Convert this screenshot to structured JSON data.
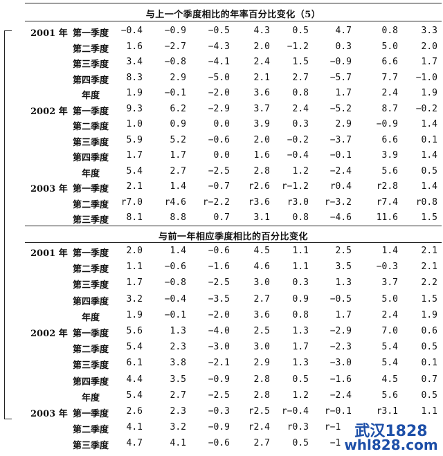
{
  "sections": [
    {
      "title": "与上一个季度相比的年率百分比变化（5）",
      "rows": [
        {
          "year": "2001 年",
          "quarter": "第一季度",
          "values": [
            "−0.4",
            "−0.9",
            "−0.5",
            "4.3",
            "0.5",
            "4.7",
            "0.8",
            "3.3"
          ]
        },
        {
          "year": "",
          "quarter": "第二季度",
          "values": [
            "1.6",
            "−2.7",
            "−4.3",
            "2.0",
            "−1.2",
            "0.3",
            "5.0",
            "2.0"
          ]
        },
        {
          "year": "",
          "quarter": "第三季度",
          "values": [
            "3.4",
            "−0.8",
            "−4.1",
            "2.4",
            "1.5",
            "−0.9",
            "6.6",
            "1.7"
          ]
        },
        {
          "year": "",
          "quarter": "第四季度",
          "values": [
            "8.3",
            "2.9",
            "−5.0",
            "2.1",
            "2.7",
            "−5.7",
            "7.7",
            "−1.0"
          ]
        },
        {
          "year": "",
          "quarter": "年度",
          "values": [
            "1.9",
            "−0.1",
            "−2.0",
            "3.6",
            "0.8",
            "1.7",
            "2.4",
            "1.9"
          ]
        },
        {
          "year": "2002 年",
          "quarter": "第一季度",
          "values": [
            "9.3",
            "6.2",
            "−2.9",
            "3.7",
            "2.4",
            "−5.2",
            "8.7",
            "−0.2"
          ]
        },
        {
          "year": "",
          "quarter": "第二季度",
          "values": [
            "1.0",
            "0.9",
            "0.0",
            "3.9",
            "0.3",
            "2.9",
            "−0.9",
            "1.4"
          ]
        },
        {
          "year": "",
          "quarter": "第三季度",
          "values": [
            "5.9",
            "5.2",
            "−0.6",
            "2.0",
            "−0.2",
            "−3.7",
            "6.6",
            "0.1"
          ]
        },
        {
          "year": "",
          "quarter": "第四季度",
          "values": [
            "1.7",
            "1.7",
            "0.0",
            "1.6",
            "−0.4",
            "−0.1",
            "3.9",
            "1.4"
          ]
        },
        {
          "year": "",
          "quarter": "年度",
          "values": [
            "5.4",
            "2.7",
            "−2.5",
            "2.8",
            "1.2",
            "−2.4",
            "5.6",
            "0.5"
          ]
        },
        {
          "year": "2003 年",
          "quarter": "第一季度",
          "values": [
            "2.1",
            "1.4",
            "−0.7",
            "r2.6",
            "r−1.2",
            "r0.4",
            "r2.8",
            "1.4"
          ]
        },
        {
          "year": "",
          "quarter": "第二季度",
          "values": [
            "r7.0",
            "r4.6",
            "r−2.2",
            "r3.6",
            "r3.0",
            "r−3.2",
            "r7.4",
            "r0.8"
          ]
        },
        {
          "year": "",
          "quarter": "第三季度",
          "values": [
            "8.1",
            "8.8",
            "0.7",
            "3.1",
            "0.8",
            "−4.6",
            "11.6",
            "1.5"
          ]
        }
      ]
    },
    {
      "title": "与前一年相应季度相比的百分比变化",
      "rows": [
        {
          "year": "2001 年",
          "quarter": "第一季度",
          "values": [
            "2.0",
            "1.4",
            "−0.6",
            "4.5",
            "1.1",
            "2.5",
            "1.4",
            "2.1"
          ]
        },
        {
          "year": "",
          "quarter": "第二季度",
          "values": [
            "1.1",
            "−0.6",
            "−1.6",
            "4.6",
            "1.1",
            "3.5",
            "−0.3",
            "2.1"
          ]
        },
        {
          "year": "",
          "quarter": "第三季度",
          "values": [
            "1.7",
            "−0.8",
            "−2.5",
            "3.0",
            "0.3",
            "1.3",
            "3.7",
            "2.2"
          ]
        },
        {
          "year": "",
          "quarter": "第四季度",
          "values": [
            "3.2",
            "−0.4",
            "−3.5",
            "2.7",
            "0.9",
            "−0.5",
            "5.0",
            "1.5"
          ]
        },
        {
          "year": "",
          "quarter": "年度",
          "values": [
            "1.9",
            "−0.1",
            "−2.0",
            "3.6",
            "0.8",
            "1.7",
            "2.4",
            "1.9"
          ]
        },
        {
          "year": "2002 年",
          "quarter": "第一季度",
          "values": [
            "5.6",
            "1.3",
            "−4.0",
            "2.5",
            "1.3",
            "−2.9",
            "7.0",
            "0.6"
          ]
        },
        {
          "year": "",
          "quarter": "第二季度",
          "values": [
            "5.4",
            "2.3",
            "−3.0",
            "3.0",
            "1.7",
            "−2.3",
            "5.4",
            "0.5"
          ]
        },
        {
          "year": "",
          "quarter": "第三季度",
          "values": [
            "6.1",
            "3.8",
            "−2.1",
            "2.9",
            "1.3",
            "−3.0",
            "5.4",
            "0.1"
          ]
        },
        {
          "year": "",
          "quarter": "第四季度",
          "values": [
            "4.4",
            "3.5",
            "−0.9",
            "2.8",
            "0.5",
            "−1.6",
            "4.5",
            "0.7"
          ]
        },
        {
          "year": "",
          "quarter": "年度",
          "values": [
            "5.4",
            "2.7",
            "−2.5",
            "2.8",
            "1.2",
            "−2.4",
            "5.6",
            "0.5"
          ]
        },
        {
          "year": "2003 年",
          "quarter": "第一季度",
          "values": [
            "2.6",
            "2.3",
            "−0.3",
            "r2.5",
            "r−0.4",
            "r−0.1",
            "r3.1",
            "1.1"
          ]
        },
        {
          "year": "",
          "quarter": "第二季度",
          "values": [
            "4.1",
            "3.2",
            "−0.9",
            "r2.4",
            "r0.3",
            "r−1.6",
            "",
            ""
          ]
        },
        {
          "year": "",
          "quarter": "第三季度",
          "values": [
            "4.7",
            "4.1",
            "−0.6",
            "2.7",
            "0.5",
            "−1.9",
            "",
            ""
          ]
        }
      ]
    }
  ],
  "watermark": {
    "line1": "武汉1828",
    "line2": "whl828.com"
  }
}
